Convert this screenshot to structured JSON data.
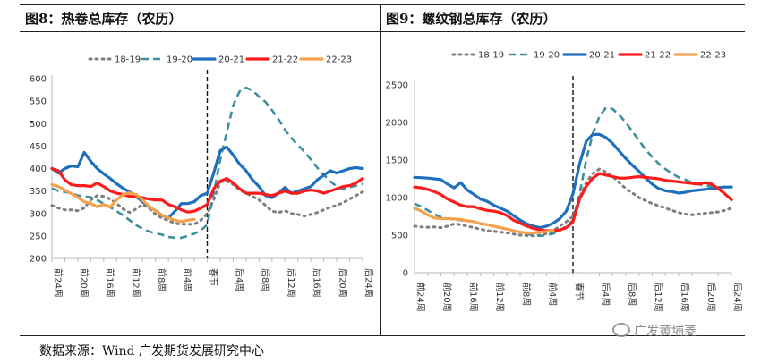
{
  "panels": {
    "left_title": "图8：热卷总库存（农历）",
    "right_title": "图9：螺纹钢总库存（农历）"
  },
  "source": "数据来源：Wind 广发期货发展研究中心",
  "watermark": "广发黄埔菱",
  "colors": {
    "18-19": "#7f7f7f",
    "19-20": "#3f8f9f",
    "20-21": "#1f6fbf",
    "21-22": "#ff1a1a",
    "22-23": "#f5a04a"
  },
  "chart_data": [
    {
      "type": "line",
      "title": "图8：热卷总库存（农历）",
      "ylim": [
        200,
        600
      ],
      "yticks": [
        600,
        550,
        500,
        450,
        400,
        350,
        300,
        250,
        200
      ],
      "xtick_labels": [
        "前24周",
        "前20周",
        "前16周",
        "前12周",
        "前8周",
        "前4周",
        "春节",
        "后4周",
        "后8周",
        "后12周",
        "后16周",
        "后20周",
        "后24周"
      ],
      "x_index": [
        -24,
        -23,
        -22,
        -21,
        -20,
        -19,
        -18,
        -17,
        -16,
        -15,
        -14,
        -13,
        -12,
        -11,
        -10,
        -9,
        -8,
        -7,
        -6,
        -5,
        -4,
        -3,
        -2,
        -1,
        0,
        1,
        2,
        3,
        4,
        5,
        6,
        7,
        8,
        9,
        10,
        11,
        12,
        13,
        14,
        15,
        16,
        17,
        18,
        19,
        20,
        21,
        22,
        23,
        24
      ],
      "spring_festival_x": 0,
      "series": [
        {
          "name": "18-19",
          "style": "dotted",
          "values": [
            318,
            312,
            308,
            308,
            306,
            312,
            330,
            340,
            338,
            332,
            322,
            310,
            302,
            310,
            320,
            312,
            298,
            290,
            284,
            278,
            276,
            276,
            276,
            285,
            300,
            330,
            370,
            372,
            365,
            352,
            345,
            338,
            330,
            318,
            305,
            302,
            306,
            300,
            298,
            294,
            298,
            302,
            308,
            314,
            318,
            324,
            332,
            340,
            348
          ]
        },
        {
          "name": "19-20",
          "style": "dashed",
          "values": [
            356,
            350,
            348,
            345,
            340,
            338,
            336,
            330,
            322,
            314,
            305,
            296,
            285,
            274,
            266,
            260,
            256,
            253,
            248,
            246,
            246,
            250,
            255,
            262,
            275,
            345,
            420,
            480,
            540,
            572,
            580,
            574,
            560,
            548,
            530,
            510,
            486,
            468,
            452,
            438,
            420,
            402,
            386,
            372,
            360,
            354,
            358,
            362,
            366
          ]
        },
        {
          "name": "20-21",
          "style": "solid",
          "values": [
            400,
            390,
            400,
            406,
            404,
            436,
            416,
            400,
            388,
            378,
            366,
            356,
            348,
            338,
            326,
            315,
            306,
            296,
            290,
            305,
            322,
            322,
            326,
            340,
            345,
            390,
            440,
            448,
            430,
            410,
            395,
            375,
            360,
            340,
            335,
            345,
            358,
            345,
            350,
            355,
            360,
            375,
            385,
            395,
            390,
            395,
            400,
            402,
            400
          ]
        },
        {
          "name": "21-22",
          "style": "solid",
          "values": [
            400,
            395,
            375,
            364,
            362,
            362,
            360,
            368,
            360,
            350,
            345,
            342,
            338,
            338,
            335,
            332,
            330,
            330,
            320,
            315,
            308,
            303,
            305,
            312,
            320,
            355,
            372,
            378,
            368,
            355,
            345,
            345,
            345,
            342,
            340,
            345,
            350,
            345,
            345,
            350,
            352,
            350,
            345,
            350,
            355,
            360,
            362,
            368,
            378
          ]
        },
        {
          "name": "22-23",
          "style": "solid",
          "values": [
            364,
            360,
            352,
            344,
            336,
            326,
            322,
            315,
            320,
            314,
            330,
            342,
            346,
            342,
            330,
            316,
            305,
            296,
            290,
            285,
            282,
            285,
            287
          ]
        }
      ]
    },
    {
      "type": "line",
      "title": "图9：螺纹钢总库存（农历）",
      "ylim": [
        0,
        2500
      ],
      "yticks": [
        2500,
        2000,
        1500,
        1000,
        500,
        0
      ],
      "xtick_labels": [
        "前24周",
        "前20周",
        "前16周",
        "前12周",
        "前8周",
        "前4周",
        "春节",
        "后4周",
        "后8周",
        "后12周",
        "后16周",
        "后20周",
        "后24周"
      ],
      "x_index": [
        -24,
        -23,
        -22,
        -21,
        -20,
        -19,
        -18,
        -17,
        -16,
        -15,
        -14,
        -13,
        -12,
        -11,
        -10,
        -9,
        -8,
        -7,
        -6,
        -5,
        -4,
        -3,
        -2,
        -1,
        0,
        1,
        2,
        3,
        4,
        5,
        6,
        7,
        8,
        9,
        10,
        11,
        12,
        13,
        14,
        15,
        16,
        17,
        18,
        19,
        20,
        21,
        22,
        23,
        24
      ],
      "spring_festival_x": 0,
      "series": [
        {
          "name": "18-19",
          "style": "dotted",
          "values": [
            620,
            610,
            605,
            610,
            600,
            620,
            650,
            640,
            620,
            600,
            580,
            560,
            550,
            540,
            530,
            515,
            500,
            495,
            490,
            500,
            520,
            560,
            620,
            680,
            750,
            1000,
            1200,
            1320,
            1380,
            1340,
            1280,
            1200,
            1120,
            1060,
            1000,
            960,
            920,
            890,
            860,
            830,
            800,
            780,
            770,
            780,
            790,
            800,
            810,
            830,
            860
          ]
        },
        {
          "name": "19-20",
          "style": "dashed",
          "values": [
            920,
            880,
            830,
            780,
            740,
            720,
            710,
            700,
            690,
            680,
            660,
            640,
            620,
            600,
            580,
            560,
            540,
            520,
            500,
            490,
            500,
            520,
            560,
            620,
            700,
            1050,
            1500,
            1850,
            2080,
            2200,
            2180,
            2100,
            2000,
            1880,
            1760,
            1640,
            1540,
            1450,
            1380,
            1320,
            1270,
            1240,
            1200,
            1180,
            1160,
            1150,
            1140,
            1140,
            1150
          ]
        },
        {
          "name": "20-21",
          "style": "solid",
          "values": [
            1270,
            1265,
            1260,
            1250,
            1240,
            1180,
            1130,
            1200,
            1100,
            1040,
            980,
            950,
            900,
            860,
            820,
            760,
            700,
            650,
            620,
            600,
            620,
            660,
            720,
            820,
            1050,
            1450,
            1750,
            1840,
            1840,
            1800,
            1720,
            1620,
            1520,
            1430,
            1350,
            1260,
            1180,
            1120,
            1090,
            1080,
            1060,
            1070,
            1090,
            1100,
            1110,
            1120,
            1130,
            1140,
            1140
          ]
        },
        {
          "name": "21-22",
          "style": "solid",
          "values": [
            1140,
            1130,
            1110,
            1080,
            1040,
            980,
            940,
            900,
            880,
            880,
            850,
            830,
            820,
            800,
            760,
            700,
            660,
            620,
            590,
            570,
            560,
            560,
            570,
            600,
            680,
            980,
            1150,
            1260,
            1320,
            1300,
            1280,
            1260,
            1260,
            1270,
            1280,
            1270,
            1260,
            1250,
            1230,
            1220,
            1210,
            1200,
            1190,
            1180,
            1200,
            1180,
            1120,
            1050,
            970
          ]
        },
        {
          "name": "22-23",
          "style": "solid",
          "values": [
            860,
            820,
            770,
            730,
            720,
            720,
            715,
            710,
            690,
            680,
            650,
            640,
            620,
            600,
            580,
            560,
            540,
            530,
            530,
            540,
            550,
            560
          ]
        }
      ]
    }
  ]
}
